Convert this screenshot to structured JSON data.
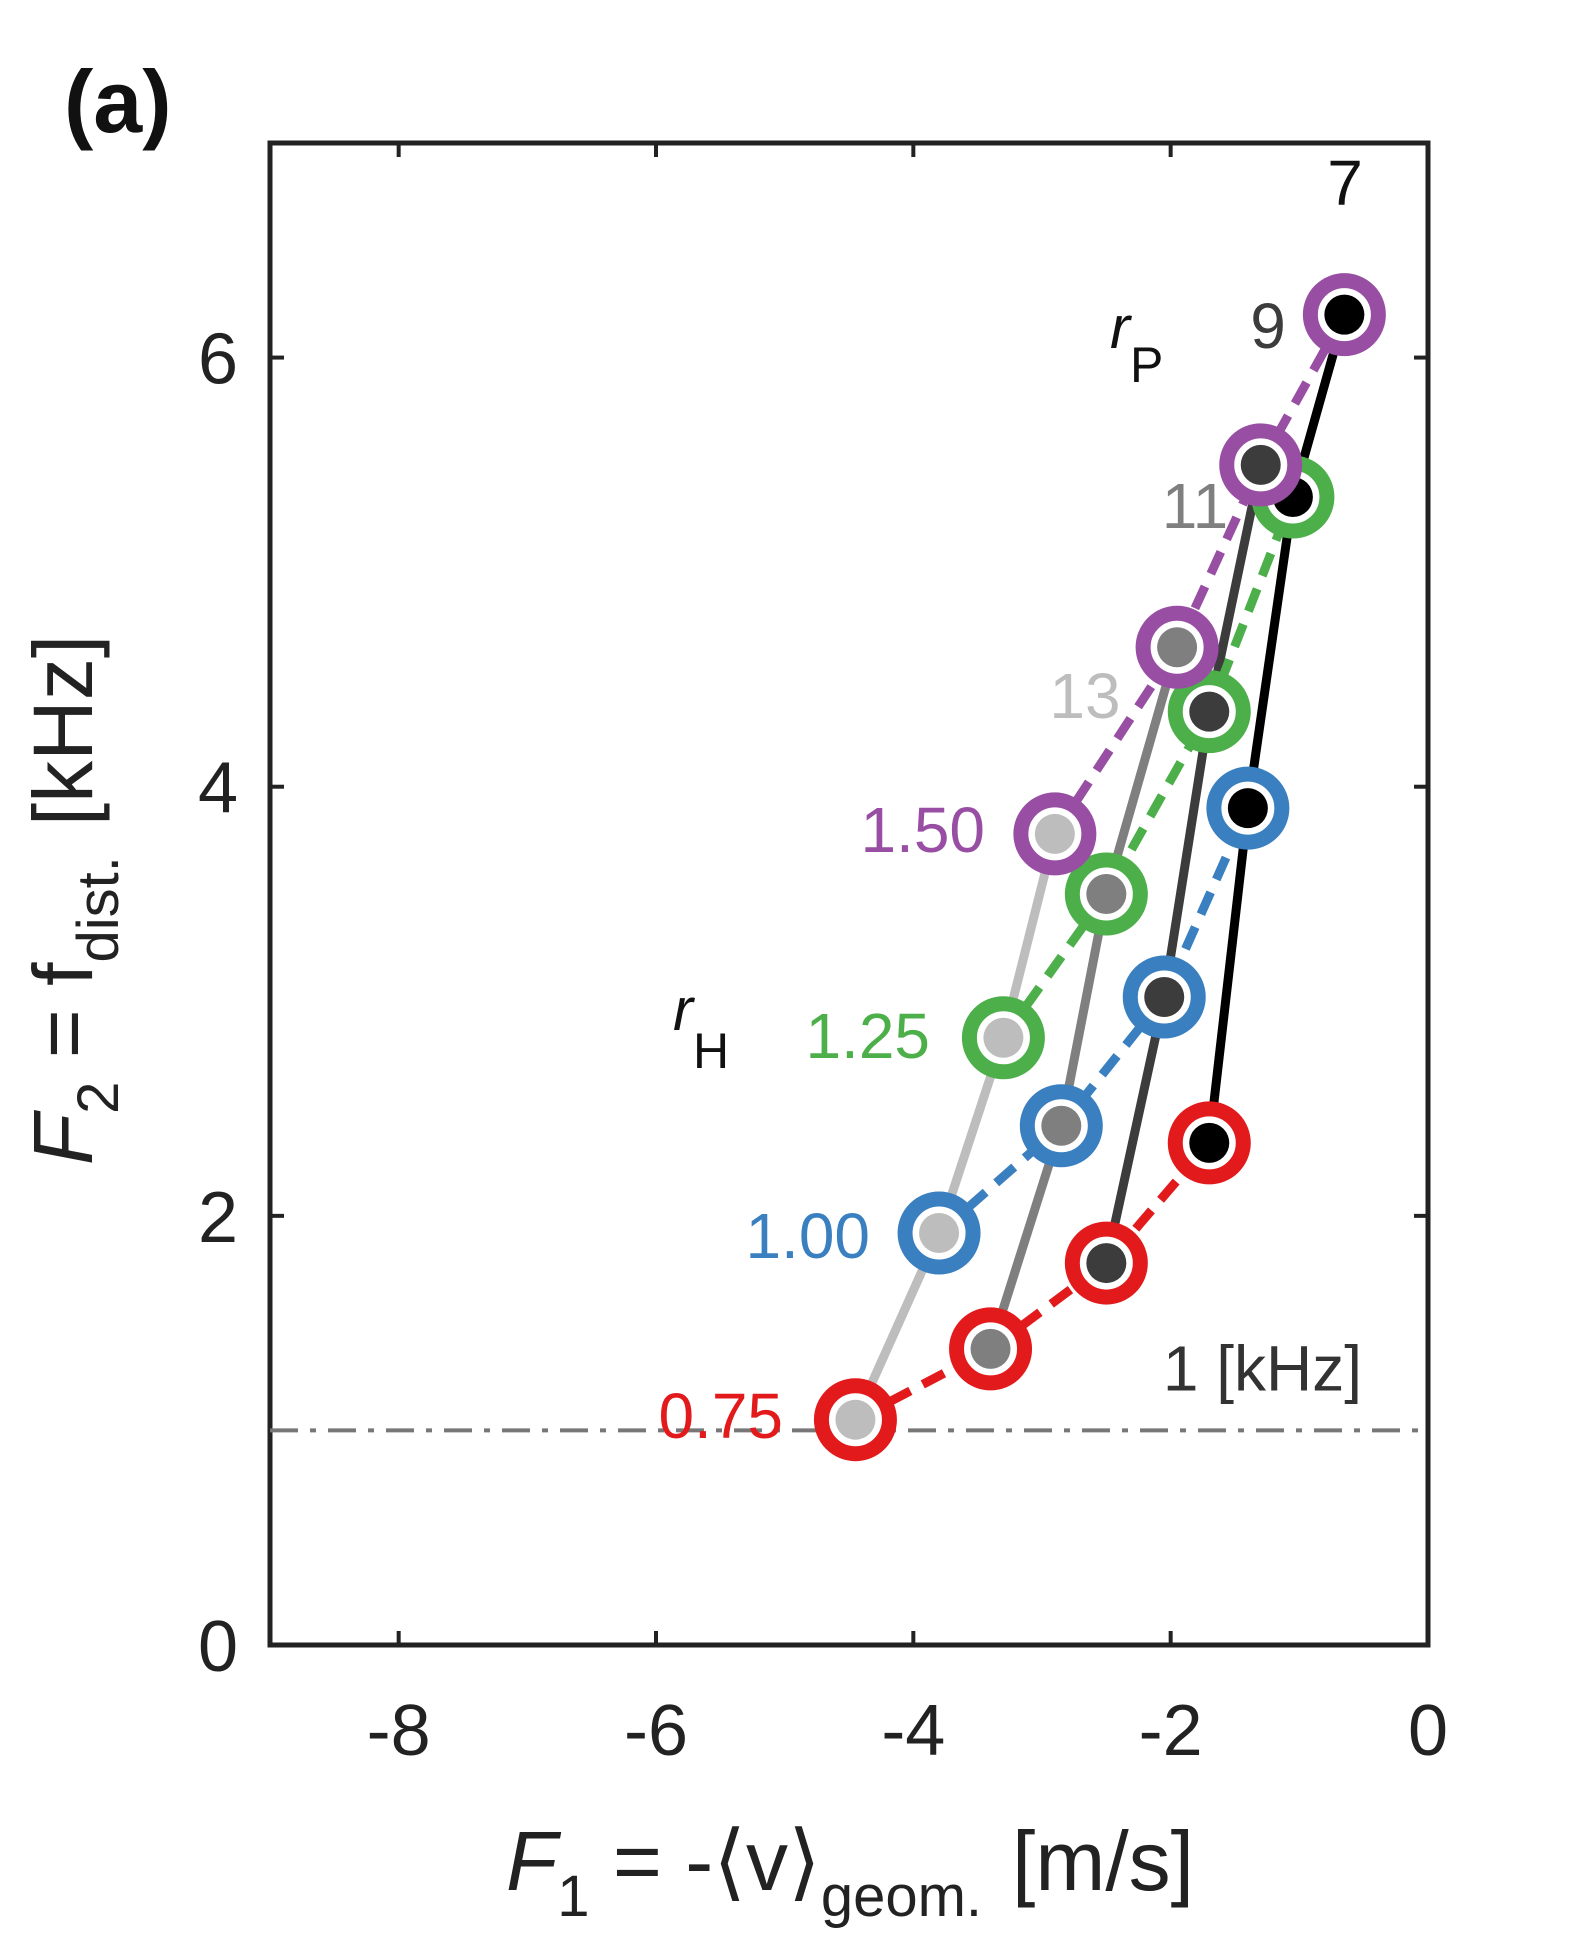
{
  "panel_label": "(a)",
  "chart_data": {
    "type": "line",
    "x_axis": {
      "label_main": "F",
      "label_sub": "1",
      "label_rest": " = -⟨v⟩",
      "label_sub2": "geom.",
      "label_unit": "[m/s]",
      "xlim": [
        -9,
        0
      ],
      "ticks": [
        -8,
        -6,
        -4,
        -2,
        0
      ],
      "tick_labels": [
        "-8",
        "-6",
        "-4",
        "-2",
        "0"
      ]
    },
    "y_axis": {
      "label_main": "F",
      "label_sub": "2",
      "label_rest": " = f",
      "label_sub2": "dist.",
      "label_unit": "[kHz]",
      "ylim": [
        0,
        7
      ],
      "ticks": [
        0,
        2,
        4,
        6
      ],
      "tick_labels": [
        "0",
        "2",
        "4",
        "6"
      ]
    },
    "reference_line": {
      "y": 1,
      "label": "1 [kHz]",
      "style": "dash-dot",
      "color": "#777777"
    },
    "rP_label": "r",
    "rP_sub": "P",
    "rH_label": "r",
    "rH_sub": "H",
    "rP_series": [
      {
        "name": "7",
        "color": "#000000",
        "label_color": "#111111",
        "points": [
          [
            -1.7,
            2.34
          ],
          [
            -1.4,
            3.9
          ],
          [
            -1.05,
            5.35
          ],
          [
            -0.65,
            6.2
          ]
        ]
      },
      {
        "name": "9",
        "color": "#3c3c3c",
        "label_color": "#3c3c3c",
        "points": [
          [
            -2.5,
            1.78
          ],
          [
            -2.05,
            3.02
          ],
          [
            -1.7,
            4.35
          ],
          [
            -1.3,
            5.5
          ]
        ]
      },
      {
        "name": "11",
        "color": "#7f7f7f",
        "label_color": "#7f7f7f",
        "points": [
          [
            -3.4,
            1.38
          ],
          [
            -2.85,
            2.42
          ],
          [
            -2.5,
            3.5
          ],
          [
            -1.95,
            4.65
          ]
        ]
      },
      {
        "name": "13",
        "color": "#bdbdbd",
        "label_color": "#bdbdbd",
        "points": [
          [
            -4.45,
            1.05
          ],
          [
            -3.8,
            1.92
          ],
          [
            -3.3,
            2.83
          ],
          [
            -2.9,
            3.78
          ]
        ]
      }
    ],
    "rH_series": [
      {
        "name": "0.75",
        "color": "#e31a1c",
        "points": [
          [
            -4.45,
            1.05
          ],
          [
            -3.4,
            1.38
          ],
          [
            -2.5,
            1.78
          ],
          [
            -1.7,
            2.34
          ]
        ]
      },
      {
        "name": "1.00",
        "color": "#3a7fbf",
        "points": [
          [
            -3.8,
            1.92
          ],
          [
            -2.85,
            2.42
          ],
          [
            -2.05,
            3.02
          ],
          [
            -1.4,
            3.9
          ]
        ]
      },
      {
        "name": "1.25",
        "color": "#4daf4a",
        "points": [
          [
            -3.3,
            2.83
          ],
          [
            -2.5,
            3.5
          ],
          [
            -1.7,
            4.35
          ],
          [
            -1.05,
            5.35
          ]
        ]
      },
      {
        "name": "1.50",
        "color": "#984ea3",
        "points": [
          [
            -2.9,
            3.78
          ],
          [
            -1.95,
            4.65
          ],
          [
            -1.3,
            5.5
          ],
          [
            -0.65,
            6.2
          ]
        ]
      }
    ]
  }
}
